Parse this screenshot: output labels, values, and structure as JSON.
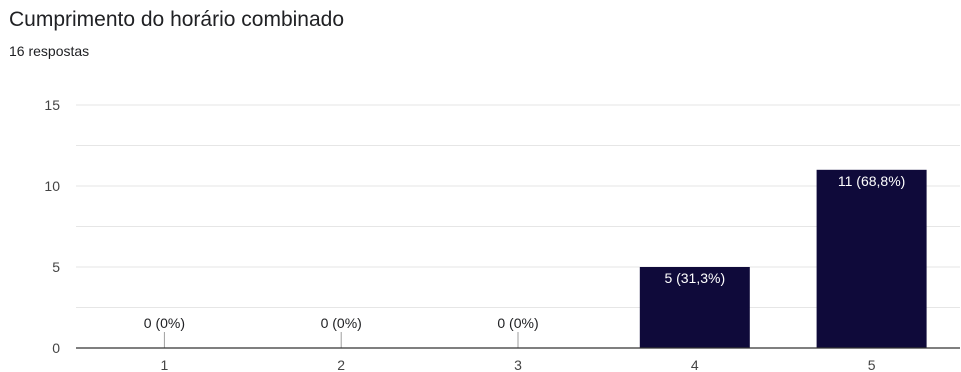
{
  "header": {
    "title": "Cumprimento do horário combinado",
    "subtitle": "16 respostas"
  },
  "colors": {
    "bar": "#0f0a3a",
    "grid": "#e6e6e6",
    "axis": "#333333"
  },
  "chart_data": {
    "type": "bar",
    "title": "Cumprimento do horário combinado",
    "subtitle": "16 respostas",
    "categories": [
      "1",
      "2",
      "3",
      "4",
      "5"
    ],
    "values": [
      0,
      0,
      0,
      5,
      11
    ],
    "labels": [
      "0 (0%)",
      "0 (0%)",
      "0 (0%)",
      "5 (31,3%)",
      "11 (68,8%)"
    ],
    "yticks": [
      "0",
      "5",
      "10",
      "15"
    ],
    "ylim": [
      0,
      15
    ],
    "xlabel": "",
    "ylabel": "",
    "grid": true,
    "legend": "none"
  }
}
